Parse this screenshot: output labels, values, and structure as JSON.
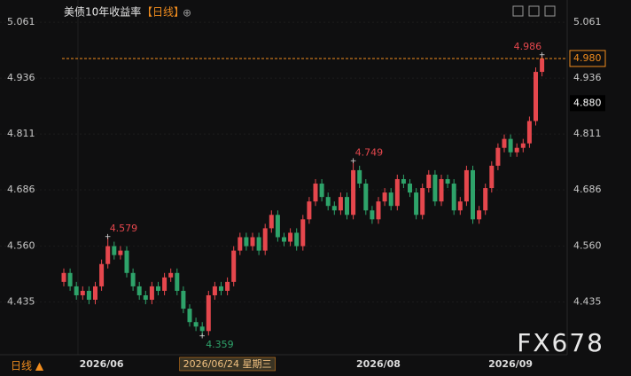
{
  "chart_data": {
    "type": "candlestick",
    "title": "美债10年收益率",
    "period": "【日线】",
    "period_switch": "日线 ▲",
    "watermark": "FX678",
    "categories": [
      null,
      null,
      null,
      null,
      null,
      null,
      "2026/06",
      null,
      null,
      null,
      null,
      null,
      null,
      null,
      null,
      null,
      null,
      null,
      null,
      null,
      null,
      null,
      null,
      null,
      null,
      null,
      "2026/06/24 星期三",
      null,
      null,
      null,
      null,
      null,
      null,
      null,
      null,
      null,
      null,
      null,
      null,
      null,
      null,
      null,
      null,
      null,
      null,
      null,
      null,
      null,
      null,
      null,
      "2026/08",
      null,
      null,
      null,
      null,
      null,
      null,
      null,
      null,
      null,
      null,
      null,
      null,
      null,
      null,
      null,
      null,
      null,
      null,
      null,
      null,
      "2026/09",
      null,
      null,
      null,
      null,
      null
    ],
    "open": [
      4.48,
      4.5,
      4.47,
      4.45,
      4.46,
      4.44,
      4.47,
      4.52,
      4.56,
      4.54,
      4.55,
      4.5,
      4.47,
      4.45,
      4.44,
      4.47,
      4.46,
      4.49,
      4.5,
      4.46,
      4.42,
      4.39,
      4.38,
      4.37,
      4.45,
      4.47,
      4.46,
      4.48,
      4.55,
      4.58,
      4.56,
      4.58,
      4.55,
      4.6,
      4.63,
      4.58,
      4.57,
      4.59,
      4.56,
      4.62,
      4.66,
      4.7,
      4.67,
      4.65,
      4.64,
      4.67,
      4.63,
      4.73,
      4.7,
      4.64,
      4.62,
      4.66,
      4.68,
      4.65,
      4.71,
      4.7,
      4.68,
      4.63,
      4.69,
      4.72,
      4.66,
      4.71,
      4.7,
      4.64,
      4.66,
      4.73,
      4.62,
      4.64,
      4.69,
      4.74,
      4.78,
      4.8,
      4.77,
      4.78,
      4.79,
      4.84,
      4.95
    ],
    "high": [
      4.51,
      4.51,
      4.48,
      4.47,
      4.47,
      4.48,
      4.53,
      4.579,
      4.57,
      4.56,
      4.56,
      4.51,
      4.48,
      4.46,
      4.48,
      4.48,
      4.5,
      4.51,
      4.51,
      4.47,
      4.43,
      4.4,
      4.39,
      4.46,
      4.48,
      4.48,
      4.49,
      4.56,
      4.59,
      4.59,
      4.59,
      4.59,
      4.61,
      4.64,
      4.64,
      4.59,
      4.6,
      4.6,
      4.63,
      4.67,
      4.71,
      4.71,
      4.68,
      4.66,
      4.68,
      4.68,
      4.749,
      4.74,
      4.71,
      4.65,
      4.67,
      4.69,
      4.69,
      4.72,
      4.72,
      4.71,
      4.69,
      4.7,
      4.73,
      4.73,
      4.72,
      4.72,
      4.71,
      4.67,
      4.74,
      4.74,
      4.65,
      4.7,
      4.75,
      4.79,
      4.81,
      4.81,
      4.79,
      4.8,
      4.85,
      4.96,
      4.986
    ],
    "low": [
      4.47,
      4.46,
      4.44,
      4.44,
      4.43,
      4.43,
      4.46,
      4.51,
      4.53,
      4.53,
      4.49,
      4.46,
      4.44,
      4.43,
      4.43,
      4.45,
      4.45,
      4.48,
      4.45,
      4.41,
      4.38,
      4.37,
      4.359,
      4.36,
      4.44,
      4.45,
      4.45,
      4.47,
      4.54,
      4.55,
      4.55,
      4.54,
      4.54,
      4.59,
      4.57,
      4.56,
      4.56,
      4.55,
      4.55,
      4.61,
      4.65,
      4.66,
      4.64,
      4.63,
      4.63,
      4.62,
      4.62,
      4.69,
      4.63,
      4.61,
      4.61,
      4.65,
      4.64,
      4.64,
      4.69,
      4.67,
      4.62,
      4.62,
      4.68,
      4.65,
      4.65,
      4.69,
      4.63,
      4.63,
      4.65,
      4.61,
      4.61,
      4.63,
      4.68,
      4.73,
      4.77,
      4.76,
      4.76,
      4.77,
      4.78,
      4.83,
      4.94
    ],
    "close": [
      4.5,
      4.47,
      4.45,
      4.46,
      4.44,
      4.47,
      4.52,
      4.56,
      4.54,
      4.55,
      4.5,
      4.47,
      4.45,
      4.44,
      4.47,
      4.46,
      4.49,
      4.5,
      4.46,
      4.42,
      4.39,
      4.38,
      4.37,
      4.45,
      4.47,
      4.46,
      4.48,
      4.55,
      4.58,
      4.56,
      4.58,
      4.55,
      4.6,
      4.63,
      4.58,
      4.57,
      4.59,
      4.56,
      4.62,
      4.66,
      4.7,
      4.67,
      4.65,
      4.64,
      4.67,
      4.63,
      4.73,
      4.7,
      4.64,
      4.62,
      4.66,
      4.68,
      4.65,
      4.71,
      4.7,
      4.68,
      4.63,
      4.69,
      4.72,
      4.66,
      4.71,
      4.7,
      4.64,
      4.66,
      4.73,
      4.62,
      4.64,
      4.69,
      4.74,
      4.78,
      4.8,
      4.77,
      4.78,
      4.79,
      4.84,
      4.95,
      4.98
    ],
    "ylim": [
      4.317,
      5.095
    ],
    "yticks": [
      5.061,
      4.936,
      4.811,
      4.686,
      {
        "value": 4.56,
        "label": "4.560"
      },
      4.435
    ],
    "up_color": "#e5474d",
    "down_color": "#2ea36a",
    "last_color": "#f08c1e",
    "last_price": {
      "value": 4.98,
      "label": "4.980"
    },
    "ref_price": {
      "value": 4.88,
      "label": "4.880"
    }
  }
}
